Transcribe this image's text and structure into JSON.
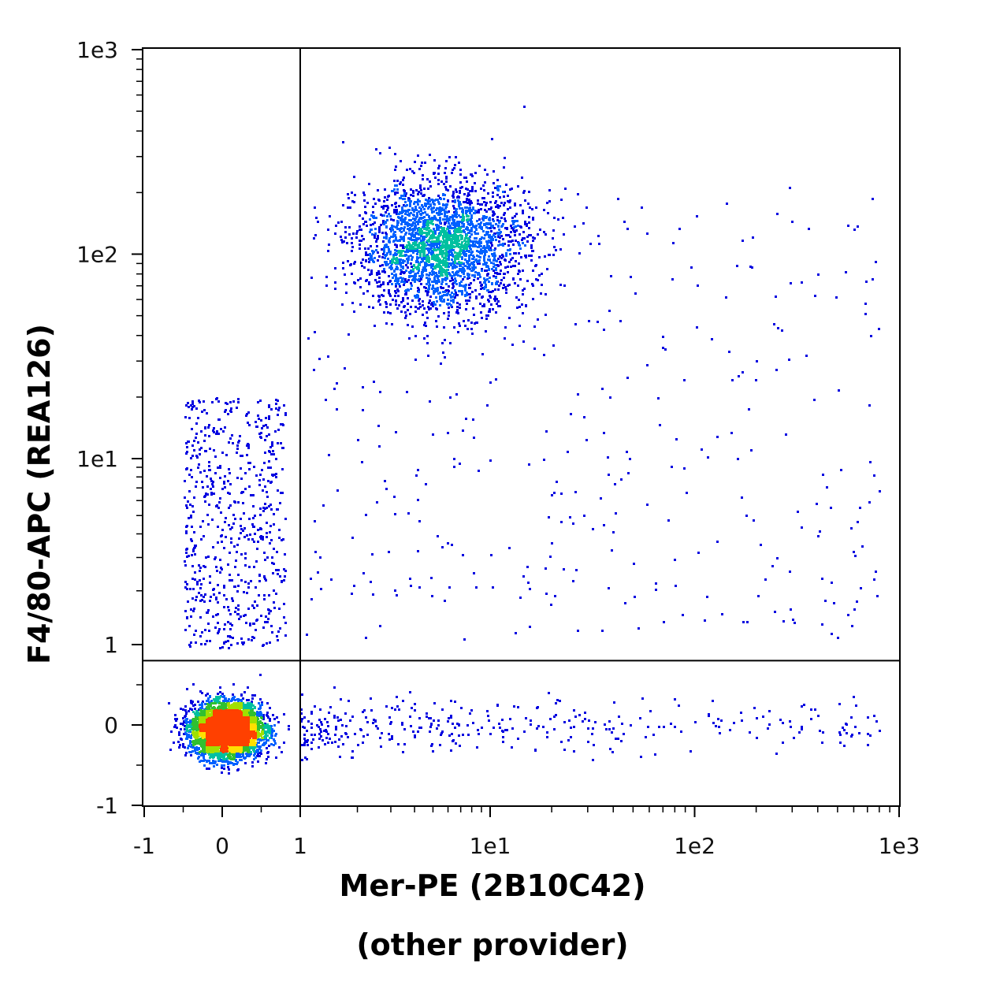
{
  "chart_data": {
    "type": "scatter",
    "style": "density dot plot (flow cytometry), colored by local density: blue (low) -> green -> yellow -> red (high)",
    "xlabel": "Mer-PE (2B10C42)",
    "xlabel_line2": "(other provider)",
    "ylabel": "F4/80-APC (REA126)",
    "x_scale": "biexponential (linear -1..1, log 1..1e3)",
    "y_scale": "biexponential (linear -1..1, log 1..1e3)",
    "xlim": [
      -1,
      1000
    ],
    "ylim": [
      -1,
      1000
    ],
    "x_ticks": [
      {
        "value": -1,
        "label": "-1"
      },
      {
        "value": 0,
        "label": "0"
      },
      {
        "value": 1,
        "label": "1"
      },
      {
        "value": 10,
        "label": "1e1"
      },
      {
        "value": 100,
        "label": "1e2"
      },
      {
        "value": 1000,
        "label": "1e3"
      }
    ],
    "y_ticks": [
      {
        "value": -1,
        "label": "-1"
      },
      {
        "value": 0,
        "label": "0"
      },
      {
        "value": 1,
        "label": "1"
      },
      {
        "value": 10,
        "label": "1e1"
      },
      {
        "value": 100,
        "label": "1e2"
      },
      {
        "value": 1000,
        "label": "1e3"
      }
    ],
    "quadrant_gates": {
      "x": 1,
      "y": 0.8
    },
    "density_colors": [
      "#0000e0",
      "#0060ff",
      "#00c0a0",
      "#30c030",
      "#a0e000",
      "#ffe000",
      "#ff4000"
    ],
    "populations": [
      {
        "description": "double-negative cluster",
        "x_center": 0.05,
        "y_center": -0.05,
        "x_spread": 0.22,
        "y_spread": 0.16,
        "relative_size": 0.55
      },
      {
        "description": "F4/80-high Mer-intermediate cluster",
        "x_center": 5.5,
        "y_center": 110,
        "x_spread_log10": 0.22,
        "y_spread_log10": 0.16,
        "relative_size": 0.3
      },
      {
        "description": "F4/80-low / Mer-negative column",
        "x_center": 0.2,
        "y_center": 5,
        "relative_size": 0.07
      },
      {
        "description": "Mer-positive F4/80-negative tail",
        "x_range": [
          1,
          800
        ],
        "y_center": 0,
        "relative_size": 0.04
      },
      {
        "description": "sparse double-positive scatter",
        "x_range": [
          1,
          800
        ],
        "y_range": [
          1,
          300
        ],
        "relative_size": 0.04
      }
    ]
  }
}
